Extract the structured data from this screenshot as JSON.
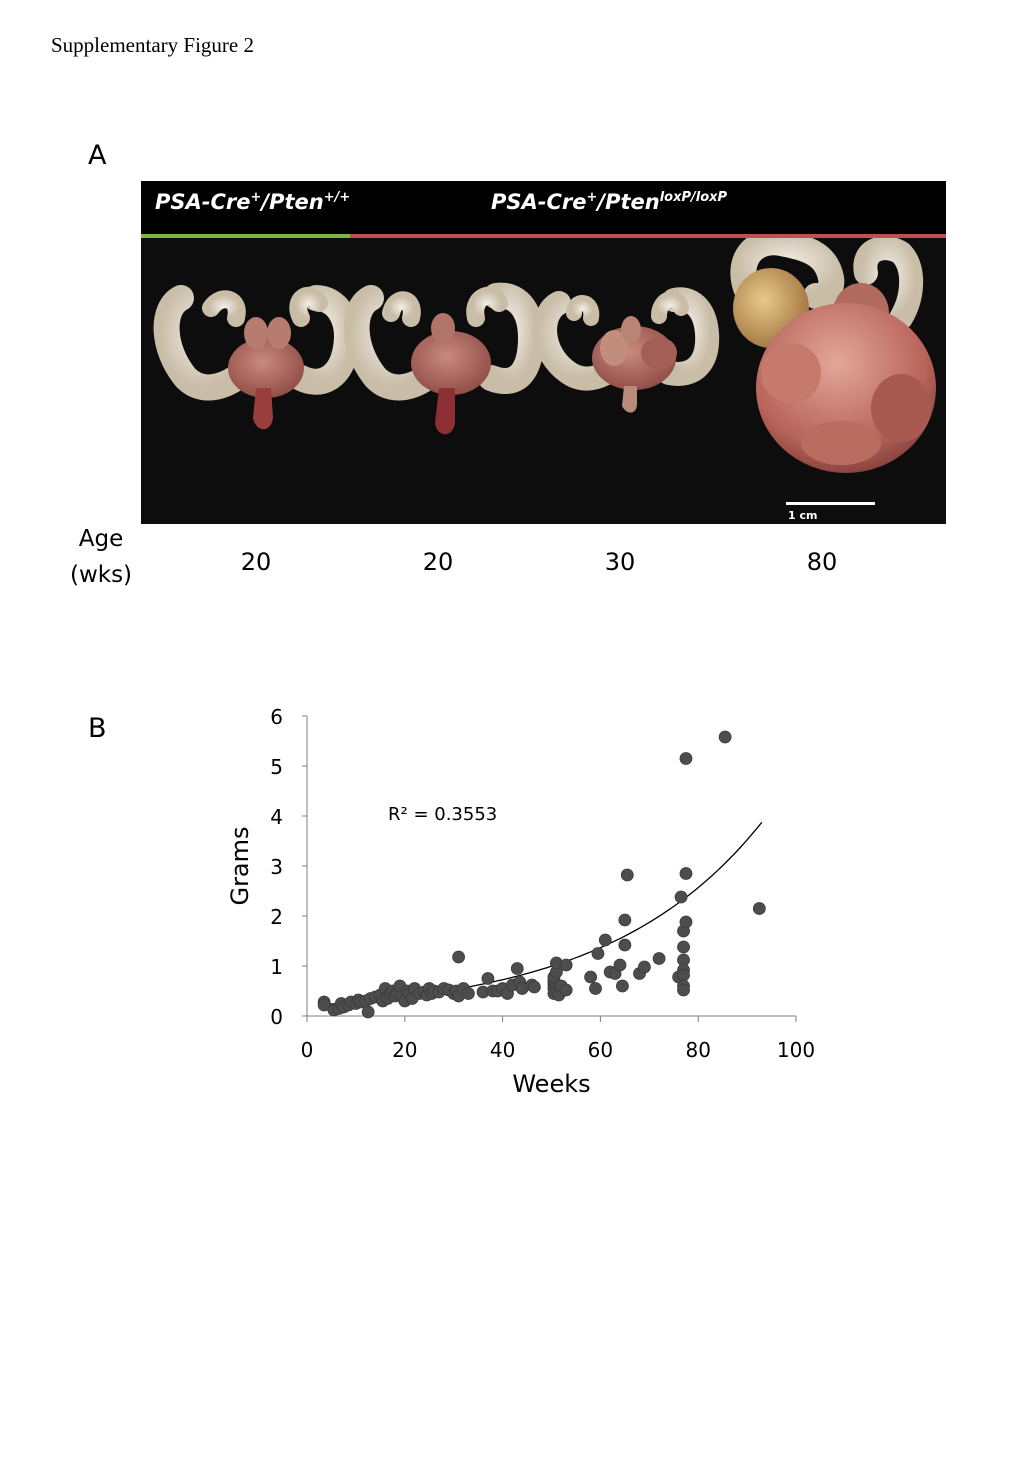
{
  "figure_caption": "Supplementary Figure 2",
  "panel_a": {
    "letter": "A",
    "genotype_control": {
      "base": "PSA-Cre",
      "sup1": "+",
      "mid": "/Pten",
      "sup2": "+/+"
    },
    "genotype_mutant": {
      "base": "PSA-Cre",
      "sup1": "+",
      "mid": "/Pten",
      "sup2": "loxP/loxP"
    },
    "bar_colors": {
      "control": "#7ab648",
      "mutant": "#c0504d"
    },
    "scale_bar_label": "1 cm",
    "age_label_line1": "Age",
    "age_label_line2": "(wks)",
    "ages": [
      "20",
      "20",
      "30",
      "80"
    ]
  },
  "panel_b": {
    "letter": "B",
    "chart_data": {
      "type": "scatter",
      "xlabel": "Weeks",
      "ylabel": "Grams",
      "xlim": [
        0,
        100
      ],
      "ylim": [
        0,
        6
      ],
      "x_ticks": [
        "0",
        "20",
        "40",
        "60",
        "80",
        "100"
      ],
      "y_ticks": [
        "0",
        "1",
        "2",
        "3",
        "4",
        "5",
        "6"
      ],
      "annotation": "R² = 0.3553",
      "trendline": {
        "type": "exponential",
        "a": 0.205,
        "b": 0.0316,
        "x_range": [
          3,
          93
        ]
      },
      "point_color": "#4d4d4d",
      "points": [
        [
          3.5,
          0.28
        ],
        [
          3.5,
          0.22
        ],
        [
          5.5,
          0.12
        ],
        [
          6.5,
          0.15
        ],
        [
          7,
          0.25
        ],
        [
          7.5,
          0.18
        ],
        [
          8.5,
          0.22
        ],
        [
          9,
          0.28
        ],
        [
          10,
          0.25
        ],
        [
          10.5,
          0.32
        ],
        [
          11,
          0.28
        ],
        [
          12,
          0.3
        ],
        [
          12.5,
          0.08
        ],
        [
          13,
          0.35
        ],
        [
          14,
          0.38
        ],
        [
          15,
          0.42
        ],
        [
          15.5,
          0.3
        ],
        [
          16,
          0.55
        ],
        [
          16.5,
          0.35
        ],
        [
          17,
          0.45
        ],
        [
          17.5,
          0.5
        ],
        [
          18,
          0.4
        ],
        [
          18.5,
          0.45
        ],
        [
          19,
          0.6
        ],
        [
          19.5,
          0.38
        ],
        [
          20,
          0.3
        ],
        [
          20.5,
          0.5
        ],
        [
          21,
          0.45
        ],
        [
          21.5,
          0.35
        ],
        [
          22,
          0.55
        ],
        [
          23,
          0.45
        ],
        [
          24,
          0.48
        ],
        [
          24.5,
          0.42
        ],
        [
          25,
          0.55
        ],
        [
          25.5,
          0.45
        ],
        [
          26,
          0.5
        ],
        [
          27,
          0.48
        ],
        [
          28,
          0.55
        ],
        [
          29,
          0.52
        ],
        [
          30,
          0.45
        ],
        [
          30.5,
          0.5
        ],
        [
          31,
          0.4
        ],
        [
          31,
          1.18
        ],
        [
          32,
          0.55
        ],
        [
          33,
          0.45
        ],
        [
          36,
          0.48
        ],
        [
          37,
          0.75
        ],
        [
          38,
          0.5
        ],
        [
          39,
          0.5
        ],
        [
          40,
          0.55
        ],
        [
          41,
          0.45
        ],
        [
          42,
          0.62
        ],
        [
          43,
          0.95
        ],
        [
          43.5,
          0.68
        ],
        [
          44,
          0.55
        ],
        [
          46,
          0.62
        ],
        [
          46.5,
          0.58
        ],
        [
          50.5,
          0.45
        ],
        [
          50.5,
          0.55
        ],
        [
          50.5,
          0.62
        ],
        [
          50.5,
          0.68
        ],
        [
          50.5,
          0.72
        ],
        [
          50.5,
          0.78
        ],
        [
          51,
          0.88
        ],
        [
          51,
          1.06
        ],
        [
          51.5,
          0.42
        ],
        [
          52,
          0.6
        ],
        [
          53,
          1.02
        ],
        [
          53,
          0.52
        ],
        [
          58,
          0.78
        ],
        [
          59,
          0.55
        ],
        [
          59.5,
          1.25
        ],
        [
          61,
          1.52
        ],
        [
          62,
          0.88
        ],
        [
          63,
          0.85
        ],
        [
          64,
          1.02
        ],
        [
          64.5,
          0.6
        ],
        [
          65,
          1.92
        ],
        [
          65,
          1.42
        ],
        [
          65.5,
          2.82
        ],
        [
          68,
          0.85
        ],
        [
          69,
          0.98
        ],
        [
          72,
          1.15
        ],
        [
          76,
          0.78
        ],
        [
          76.5,
          2.38
        ],
        [
          77,
          1.7
        ],
        [
          77,
          1.38
        ],
        [
          77,
          1.12
        ],
        [
          77,
          0.92
        ],
        [
          77,
          0.82
        ],
        [
          77,
          0.6
        ],
        [
          77,
          0.52
        ],
        [
          77.5,
          1.88
        ],
        [
          77.5,
          2.85
        ],
        [
          77.5,
          5.15
        ],
        [
          85.5,
          5.58
        ],
        [
          92.5,
          2.15
        ]
      ]
    }
  }
}
